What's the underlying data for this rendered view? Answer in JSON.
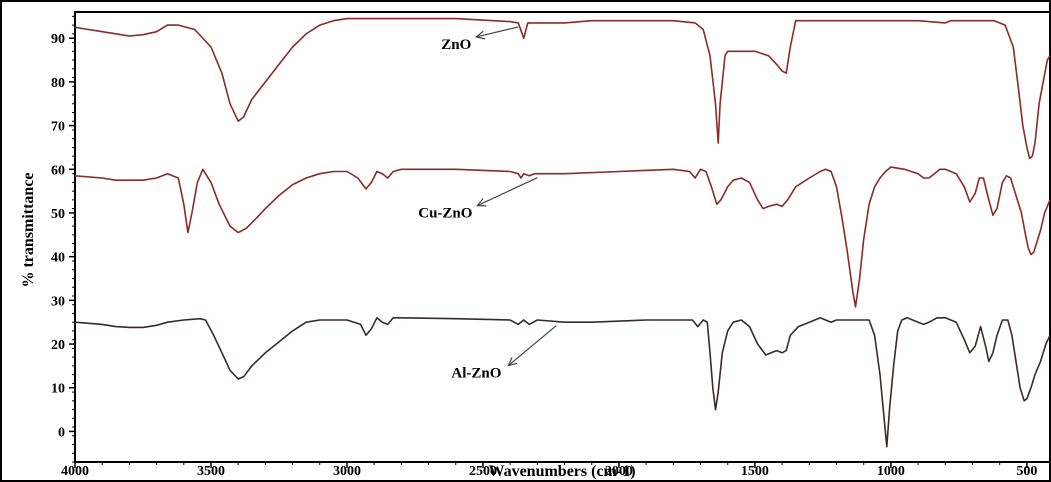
{
  "chart_data": {
    "type": "line",
    "title": "",
    "xlabel": "Wavenumbers (cm-1)",
    "ylabel": "% transmittance",
    "xlim": [
      4000,
      415
    ],
    "ylim": [
      -7,
      96
    ],
    "x_reversed": true,
    "grid": false,
    "legend": "none",
    "x_ticks": [
      4000,
      3500,
      3000,
      2500,
      2000,
      1500,
      1000,
      500
    ],
    "x_tick_labels": [
      "4000",
      "3500",
      "3000",
      "2500",
      "2000",
      "1500",
      "1000",
      "500"
    ],
    "y_ticks": [
      90,
      80,
      70,
      60,
      50,
      40,
      30,
      20,
      10,
      0
    ],
    "y_tick_labels": [
      "90",
      "80",
      "70",
      "60",
      "50",
      "40",
      "30",
      "20",
      "10",
      "0"
    ],
    "annotations": [
      {
        "text": "ZnO",
        "series": 0,
        "arrow_to_x": 2370
      },
      {
        "text": "Cu-ZnO",
        "series": 1,
        "arrow_to_x": 2300
      },
      {
        "text": "Al-ZnO",
        "series": 2,
        "arrow_to_x": 2230
      }
    ],
    "series": [
      {
        "color": "#8b2a2a",
        "points": [
          [
            4000,
            92.5
          ],
          [
            3950,
            92
          ],
          [
            3900,
            91.5
          ],
          [
            3850,
            91
          ],
          [
            3800,
            90.5
          ],
          [
            3750,
            90.8
          ],
          [
            3700,
            91.5
          ],
          [
            3660,
            93
          ],
          [
            3620,
            93
          ],
          [
            3560,
            92
          ],
          [
            3500,
            88
          ],
          [
            3460,
            82
          ],
          [
            3430,
            75
          ],
          [
            3400,
            71
          ],
          [
            3380,
            72
          ],
          [
            3350,
            76
          ],
          [
            3300,
            80
          ],
          [
            3250,
            84
          ],
          [
            3200,
            88
          ],
          [
            3150,
            91
          ],
          [
            3100,
            93
          ],
          [
            3050,
            94
          ],
          [
            3000,
            94.5
          ],
          [
            2800,
            94.5
          ],
          [
            2600,
            94.5
          ],
          [
            2400,
            93.8
          ],
          [
            2370,
            93.5
          ],
          [
            2350,
            90
          ],
          [
            2335,
            93.5
          ],
          [
            2200,
            93.5
          ],
          [
            2100,
            94
          ],
          [
            2000,
            94
          ],
          [
            1800,
            94
          ],
          [
            1720,
            93.5
          ],
          [
            1690,
            92
          ],
          [
            1665,
            86
          ],
          [
            1645,
            75
          ],
          [
            1635,
            66
          ],
          [
            1628,
            75
          ],
          [
            1610,
            86
          ],
          [
            1600,
            87
          ],
          [
            1550,
            87
          ],
          [
            1500,
            87
          ],
          [
            1450,
            86
          ],
          [
            1420,
            84
          ],
          [
            1400,
            82.5
          ],
          [
            1385,
            82
          ],
          [
            1370,
            88
          ],
          [
            1350,
            94
          ],
          [
            1200,
            94
          ],
          [
            1000,
            94
          ],
          [
            900,
            94
          ],
          [
            800,
            93.5
          ],
          [
            780,
            94
          ],
          [
            700,
            94
          ],
          [
            620,
            94
          ],
          [
            580,
            93
          ],
          [
            550,
            88
          ],
          [
            530,
            78
          ],
          [
            515,
            70
          ],
          [
            500,
            65
          ],
          [
            490,
            62.5
          ],
          [
            480,
            63
          ],
          [
            470,
            66
          ],
          [
            455,
            75
          ],
          [
            440,
            80
          ],
          [
            425,
            85
          ],
          [
            415,
            86
          ]
        ]
      },
      {
        "color": "#8b2a2a",
        "points": [
          [
            4000,
            58.5
          ],
          [
            3900,
            58
          ],
          [
            3850,
            57.5
          ],
          [
            3800,
            57.5
          ],
          [
            3750,
            57.5
          ],
          [
            3700,
            58
          ],
          [
            3660,
            59
          ],
          [
            3620,
            58
          ],
          [
            3600,
            52
          ],
          [
            3585,
            45.5
          ],
          [
            3570,
            50
          ],
          [
            3550,
            57
          ],
          [
            3530,
            60
          ],
          [
            3500,
            57
          ],
          [
            3470,
            52
          ],
          [
            3430,
            47
          ],
          [
            3400,
            45.5
          ],
          [
            3370,
            46.5
          ],
          [
            3330,
            49
          ],
          [
            3300,
            51
          ],
          [
            3250,
            54
          ],
          [
            3200,
            56.5
          ],
          [
            3150,
            58
          ],
          [
            3100,
            59
          ],
          [
            3050,
            59.5
          ],
          [
            3000,
            59.5
          ],
          [
            2960,
            58
          ],
          [
            2930,
            55.5
          ],
          [
            2910,
            57
          ],
          [
            2890,
            59.5
          ],
          [
            2870,
            59
          ],
          [
            2850,
            58
          ],
          [
            2830,
            59.5
          ],
          [
            2800,
            60
          ],
          [
            2600,
            60
          ],
          [
            2400,
            59.5
          ],
          [
            2370,
            59
          ],
          [
            2360,
            58
          ],
          [
            2350,
            59
          ],
          [
            2330,
            58.5
          ],
          [
            2310,
            59
          ],
          [
            2200,
            59
          ],
          [
            2000,
            59.5
          ],
          [
            1800,
            60
          ],
          [
            1740,
            59.5
          ],
          [
            1720,
            58
          ],
          [
            1700,
            60
          ],
          [
            1680,
            59.5
          ],
          [
            1660,
            56
          ],
          [
            1640,
            52
          ],
          [
            1625,
            53
          ],
          [
            1600,
            56
          ],
          [
            1580,
            57.5
          ],
          [
            1550,
            58
          ],
          [
            1520,
            57
          ],
          [
            1490,
            53
          ],
          [
            1470,
            51
          ],
          [
            1450,
            51.5
          ],
          [
            1420,
            52
          ],
          [
            1400,
            51.5
          ],
          [
            1380,
            53
          ],
          [
            1350,
            56
          ],
          [
            1300,
            58
          ],
          [
            1260,
            59.5
          ],
          [
            1240,
            60
          ],
          [
            1220,
            59.5
          ],
          [
            1200,
            56
          ],
          [
            1180,
            49
          ],
          [
            1160,
            41
          ],
          [
            1140,
            32
          ],
          [
            1130,
            28.5
          ],
          [
            1115,
            35
          ],
          [
            1100,
            44
          ],
          [
            1080,
            52
          ],
          [
            1060,
            56
          ],
          [
            1040,
            58
          ],
          [
            1020,
            59.5
          ],
          [
            1000,
            60.5
          ],
          [
            950,
            60
          ],
          [
            900,
            59
          ],
          [
            880,
            58
          ],
          [
            860,
            58
          ],
          [
            840,
            59
          ],
          [
            820,
            60
          ],
          [
            800,
            60
          ],
          [
            760,
            59
          ],
          [
            730,
            56
          ],
          [
            710,
            52.5
          ],
          [
            690,
            54.5
          ],
          [
            675,
            58
          ],
          [
            660,
            58
          ],
          [
            640,
            53
          ],
          [
            625,
            49.5
          ],
          [
            610,
            51
          ],
          [
            590,
            57
          ],
          [
            575,
            58.5
          ],
          [
            560,
            58
          ],
          [
            540,
            54
          ],
          [
            520,
            50
          ],
          [
            505,
            45
          ],
          [
            495,
            42
          ],
          [
            485,
            40.5
          ],
          [
            475,
            41
          ],
          [
            465,
            43
          ],
          [
            450,
            46
          ],
          [
            435,
            50
          ],
          [
            415,
            53
          ]
        ]
      },
      {
        "color": "#3a2a2a",
        "points": [
          [
            4000,
            25
          ],
          [
            3900,
            24.5
          ],
          [
            3850,
            24
          ],
          [
            3800,
            23.8
          ],
          [
            3750,
            23.8
          ],
          [
            3700,
            24.3
          ],
          [
            3660,
            25
          ],
          [
            3600,
            25.5
          ],
          [
            3540,
            25.8
          ],
          [
            3520,
            25.5
          ],
          [
            3490,
            22
          ],
          [
            3460,
            18
          ],
          [
            3430,
            14
          ],
          [
            3400,
            12
          ],
          [
            3380,
            12.5
          ],
          [
            3350,
            15
          ],
          [
            3300,
            18
          ],
          [
            3250,
            20.5
          ],
          [
            3200,
            23
          ],
          [
            3150,
            25
          ],
          [
            3100,
            25.5
          ],
          [
            3000,
            25.5
          ],
          [
            2950,
            24.5
          ],
          [
            2930,
            22
          ],
          [
            2910,
            23.5
          ],
          [
            2890,
            26
          ],
          [
            2870,
            25
          ],
          [
            2850,
            24.5
          ],
          [
            2830,
            26
          ],
          [
            2800,
            26
          ],
          [
            2600,
            25.8
          ],
          [
            2400,
            25.5
          ],
          [
            2370,
            24.5
          ],
          [
            2350,
            25.5
          ],
          [
            2330,
            24.5
          ],
          [
            2300,
            25.5
          ],
          [
            2200,
            25
          ],
          [
            2100,
            25
          ],
          [
            1900,
            25.5
          ],
          [
            1800,
            25.5
          ],
          [
            1730,
            25.5
          ],
          [
            1710,
            24
          ],
          [
            1690,
            25.5
          ],
          [
            1675,
            25
          ],
          [
            1665,
            18
          ],
          [
            1655,
            10
          ],
          [
            1645,
            5
          ],
          [
            1635,
            9
          ],
          [
            1620,
            18
          ],
          [
            1600,
            23
          ],
          [
            1580,
            25
          ],
          [
            1550,
            25.5
          ],
          [
            1520,
            24
          ],
          [
            1490,
            20
          ],
          [
            1460,
            17.5
          ],
          [
            1440,
            18
          ],
          [
            1420,
            18.5
          ],
          [
            1400,
            18
          ],
          [
            1385,
            18.5
          ],
          [
            1370,
            22
          ],
          [
            1340,
            24
          ],
          [
            1300,
            25
          ],
          [
            1260,
            26
          ],
          [
            1240,
            25.5
          ],
          [
            1220,
            25
          ],
          [
            1200,
            25.5
          ],
          [
            1150,
            25.5
          ],
          [
            1100,
            25.5
          ],
          [
            1080,
            25.5
          ],
          [
            1060,
            22
          ],
          [
            1040,
            13
          ],
          [
            1025,
            3
          ],
          [
            1015,
            -3.5
          ],
          [
            1005,
            5
          ],
          [
            990,
            15
          ],
          [
            975,
            23
          ],
          [
            960,
            25.5
          ],
          [
            940,
            26
          ],
          [
            900,
            25
          ],
          [
            880,
            24.5
          ],
          [
            860,
            25
          ],
          [
            830,
            26
          ],
          [
            800,
            26
          ],
          [
            760,
            25
          ],
          [
            730,
            21
          ],
          [
            710,
            18
          ],
          [
            690,
            19.5
          ],
          [
            670,
            24
          ],
          [
            650,
            19
          ],
          [
            640,
            16
          ],
          [
            625,
            18
          ],
          [
            610,
            22
          ],
          [
            590,
            25.5
          ],
          [
            570,
            25.5
          ],
          [
            555,
            22
          ],
          [
            540,
            16
          ],
          [
            525,
            10
          ],
          [
            510,
            7
          ],
          [
            500,
            7.5
          ],
          [
            485,
            10
          ],
          [
            470,
            13
          ],
          [
            450,
            16
          ],
          [
            430,
            20
          ],
          [
            415,
            22
          ]
        ]
      }
    ]
  }
}
